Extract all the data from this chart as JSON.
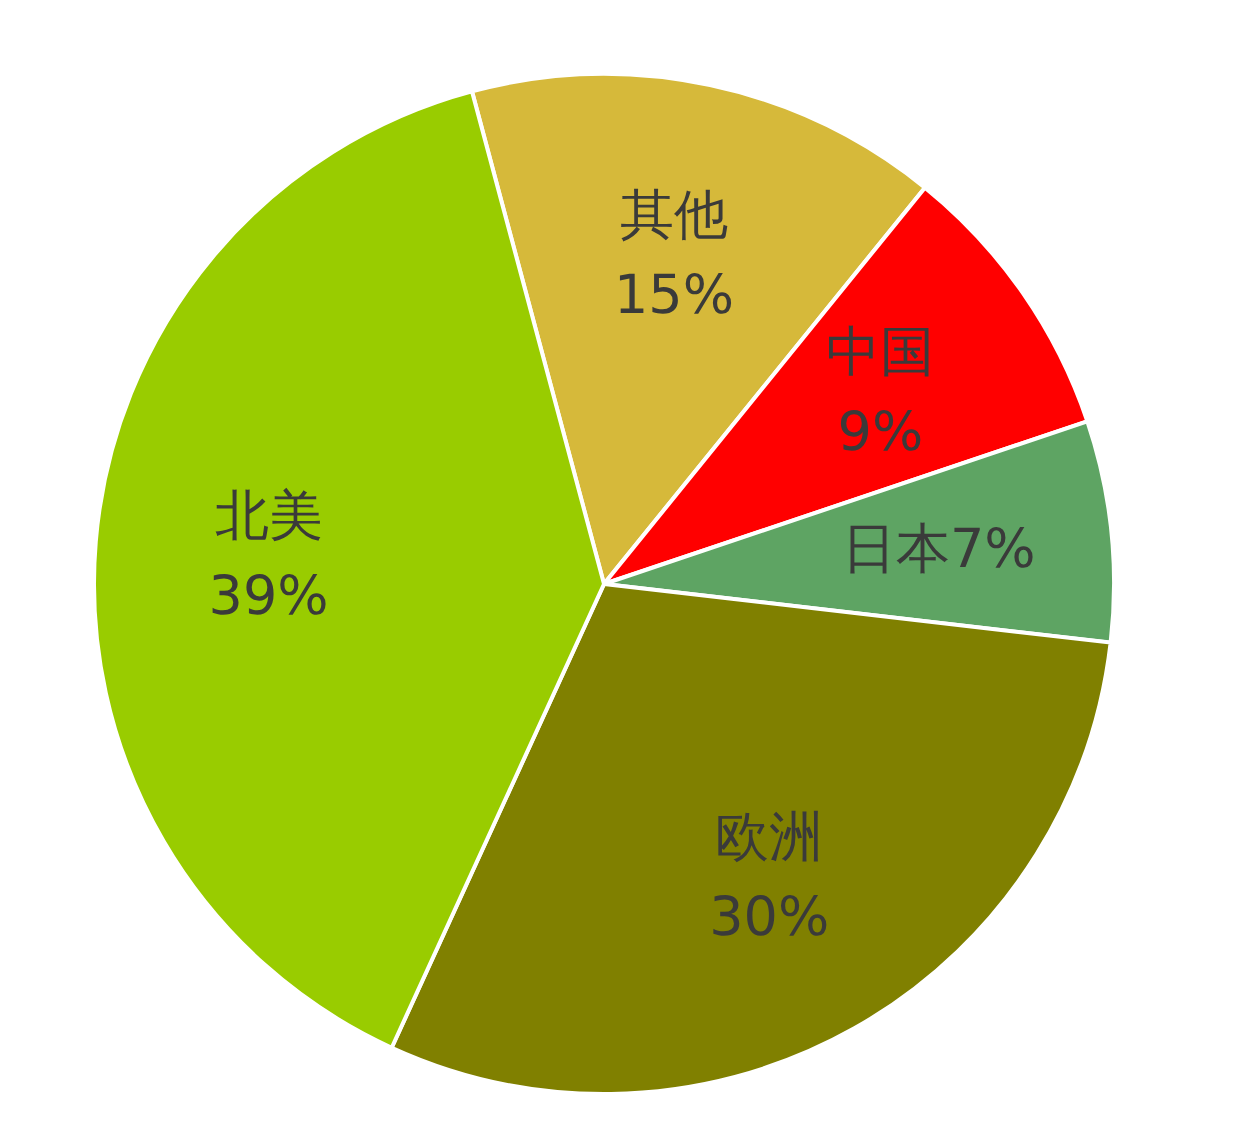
{
  "chart_data": {
    "type": "pie",
    "categories": [
      "其他",
      "中国",
      "日本",
      "欧洲",
      "北美"
    ],
    "values": [
      15,
      9,
      7,
      30,
      39
    ],
    "colors": [
      "#d6b93a",
      "#ff0000",
      "#5ea463",
      "#808000",
      "#99cc00"
    ],
    "value_labels": [
      "15%",
      "9%",
      "7%",
      "30%",
      "39%"
    ]
  }
}
